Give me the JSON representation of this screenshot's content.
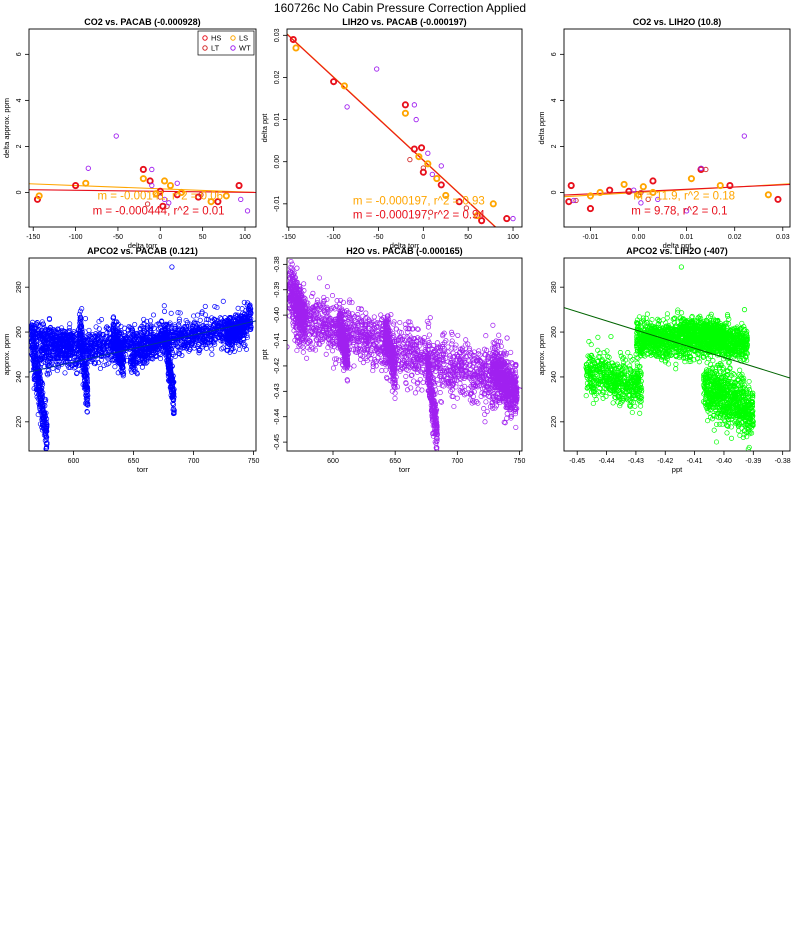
{
  "page": {
    "title": "160726c   No Cabin Pressure Correction Applied"
  },
  "colors": {
    "HS": "#e8101c",
    "LS": "#ffa500",
    "LT": "#d22a2a",
    "WT": "#a020f0",
    "blue": "#0000ff",
    "purple": "#a020f0",
    "green": "#00ff00",
    "fit_dark": "#003399",
    "fit_green": "#006400"
  },
  "chart_data": [
    {
      "type": "scatter",
      "title": "CO2 vs. PACAB (-0.000928)",
      "xlabel": "delta torr",
      "ylabel": "delta approx. ppm",
      "xlim": [
        -155,
        113
      ],
      "ylim": [
        -1.5,
        7.1
      ],
      "xticks": [
        -150,
        -100,
        -50,
        0,
        50,
        100
      ],
      "xtick_labels": [
        "-150",
        "-100",
        "-50",
        "0",
        "50",
        "100"
      ],
      "yticks": [
        0,
        2,
        4,
        6
      ],
      "ytick_labels": [
        "0",
        "2",
        "4",
        "6"
      ],
      "legend": {
        "position": "top-right",
        "entries": [
          "HS",
          "LS",
          "LT",
          "WT"
        ]
      },
      "series": [
        {
          "name": "HS",
          "color": "HS",
          "bold": true,
          "points": [
            [
              -145,
              -0.3
            ],
            [
              -100,
              0.3
            ],
            [
              -20,
              1.0
            ],
            [
              -12,
              0.5
            ],
            [
              0,
              0.05
            ],
            [
              20,
              -0.1
            ],
            [
              45,
              -0.2
            ],
            [
              68,
              -0.4
            ],
            [
              93,
              0.3
            ],
            [
              3,
              -0.6
            ]
          ]
        },
        {
          "name": "LS",
          "color": "LS",
          "bold": true,
          "points": [
            [
              -143,
              -0.15
            ],
            [
              -88,
              0.4
            ],
            [
              -20,
              0.6
            ],
            [
              -5,
              -0.05
            ],
            [
              5,
              0.5
            ],
            [
              12,
              0.3
            ],
            [
              25,
              0.0
            ],
            [
              60,
              -0.4
            ],
            [
              78,
              -0.15
            ]
          ]
        },
        {
          "name": "LT",
          "color": "LT",
          "bold": false,
          "points": [
            [
              -15,
              -0.5
            ],
            [
              0,
              -0.2
            ],
            [
              8,
              -0.6
            ],
            [
              48,
              -0.1
            ]
          ]
        },
        {
          "name": "WT",
          "color": "WT",
          "bold": false,
          "points": [
            [
              -52,
              2.45
            ],
            [
              -85,
              1.05
            ],
            [
              -10,
              1.0
            ],
            [
              -10,
              0.3
            ],
            [
              5,
              -0.3
            ],
            [
              10,
              -0.45
            ],
            [
              20,
              0.4
            ],
            [
              95,
              -0.3
            ],
            [
              103,
              -0.8
            ]
          ]
        }
      ],
      "fits": [
        {
          "color": "LS",
          "slope": -0.00141,
          "intercept": 0.16
        },
        {
          "color": "HS",
          "slope": -0.000444,
          "intercept": 0.05
        }
      ],
      "annotations": [
        {
          "text": "m = -0.00141, r^2 = 0.06",
          "color": "LS",
          "at": [
            0,
            -0.3
          ]
        },
        {
          "text": "m = -0.000444, r^2 = 0.01",
          "color": "HS",
          "at": [
            -2,
            -0.95
          ]
        }
      ]
    },
    {
      "type": "scatter",
      "title": "LIH2O vs. PACAB (-0.000197)",
      "xlabel": "delta torr",
      "ylabel": "delta ppt",
      "xlim": [
        -152,
        110
      ],
      "ylim": [
        -0.0155,
        0.0315
      ],
      "xticks": [
        -150,
        -100,
        -50,
        0,
        50,
        100
      ],
      "xtick_labels": [
        "-150",
        "-100",
        "-50",
        "0",
        "50",
        "100"
      ],
      "yticks": [
        -0.01,
        0.0,
        0.01,
        0.02,
        0.03
      ],
      "ytick_labels": [
        "-0.01",
        "0.00",
        "0.01",
        "0.02",
        "0.03"
      ],
      "series": [
        {
          "name": "HS",
          "color": "HS",
          "bold": true,
          "points": [
            [
              -145,
              0.029
            ],
            [
              -100,
              0.019
            ],
            [
              -20,
              0.0135
            ],
            [
              -10,
              0.003
            ],
            [
              -2,
              0.0033
            ],
            [
              0,
              -0.0025
            ],
            [
              20,
              -0.0055
            ],
            [
              40,
              -0.0095
            ],
            [
              65,
              -0.014
            ],
            [
              93,
              -0.0135
            ]
          ]
        },
        {
          "name": "LS",
          "color": "LS",
          "bold": true,
          "points": [
            [
              -142,
              0.027
            ],
            [
              -88,
              0.018
            ],
            [
              -20,
              0.0115
            ],
            [
              -5,
              0.0012
            ],
            [
              5,
              -0.0005
            ],
            [
              15,
              -0.004
            ],
            [
              25,
              -0.008
            ],
            [
              60,
              -0.0128
            ],
            [
              78,
              -0.01
            ]
          ]
        },
        {
          "name": "LT",
          "color": "LT",
          "bold": false,
          "points": [
            [
              -15,
              0.0005
            ],
            [
              0,
              -0.0015
            ],
            [
              8,
              -0.012
            ],
            [
              48,
              -0.011
            ]
          ]
        },
        {
          "name": "WT",
          "color": "WT",
          "bold": false,
          "points": [
            [
              -52,
              0.022
            ],
            [
              -85,
              0.013
            ],
            [
              -8,
              0.01
            ],
            [
              -10,
              0.0135
            ],
            [
              5,
              0.002
            ],
            [
              10,
              -0.003
            ],
            [
              20,
              -0.001
            ],
            [
              100,
              -0.0135
            ]
          ]
        }
      ],
      "fits": [
        {
          "color": "LS",
          "slope": -0.000197,
          "intercept": 0.00042
        },
        {
          "color": "HS",
          "slope": -0.000197,
          "intercept": 0.0003
        }
      ],
      "annotations": [
        {
          "text": "m = -0.000197, r^2 = 0.93",
          "color": "LS",
          "at": [
            -5,
            -0.0102
          ]
        },
        {
          "text": "m = -0.000197, r^2 = 0.94",
          "color": "HS",
          "at": [
            -5,
            -0.0135
          ]
        }
      ]
    },
    {
      "type": "scatter",
      "title": "CO2 vs. LIH2O (10.8)",
      "xlabel": "delta ppt",
      "ylabel": "delta ppm",
      "xlim": [
        -0.0155,
        0.0315
      ],
      "ylim": [
        -1.5,
        7.1
      ],
      "xticks": [
        -0.01,
        0.0,
        0.01,
        0.02,
        0.03
      ],
      "xtick_labels": [
        "-0.01",
        "0.00",
        "0.01",
        "0.02",
        "0.03"
      ],
      "yticks": [
        0,
        2,
        4,
        6
      ],
      "ytick_labels": [
        "0",
        "2",
        "4",
        "6"
      ],
      "series": [
        {
          "name": "HS",
          "color": "HS",
          "bold": true,
          "points": [
            [
              -0.014,
              0.3
            ],
            [
              -0.01,
              -0.7
            ],
            [
              -0.006,
              0.1
            ],
            [
              -0.002,
              0.05
            ],
            [
              0.003,
              0.5
            ],
            [
              0.013,
              1.0
            ],
            [
              0.019,
              0.3
            ],
            [
              0.029,
              -0.3
            ],
            [
              -0.0145,
              -0.4
            ]
          ]
        },
        {
          "name": "LS",
          "color": "LS",
          "bold": true,
          "points": [
            [
              -0.01,
              -0.15
            ],
            [
              -0.008,
              0.0
            ],
            [
              -0.003,
              0.35
            ],
            [
              0.001,
              0.25
            ],
            [
              0.003,
              0.0
            ],
            [
              0.011,
              0.6
            ],
            [
              0.017,
              0.3
            ],
            [
              0.027,
              -0.1
            ],
            [
              0.0,
              -0.1
            ]
          ]
        },
        {
          "name": "LT",
          "color": "LT",
          "bold": false,
          "points": [
            [
              -0.013,
              -0.35
            ],
            [
              0.0005,
              0.0
            ],
            [
              0.002,
              -0.3
            ],
            [
              0.014,
              1.0
            ]
          ]
        },
        {
          "name": "WT",
          "color": "WT",
          "bold": false,
          "points": [
            [
              0.022,
              2.45
            ],
            [
              0.013,
              1.05
            ],
            [
              -0.0135,
              -0.35
            ],
            [
              0.004,
              -0.3
            ],
            [
              0.01,
              -0.8
            ],
            [
              -0.001,
              0.1
            ],
            [
              0.0005,
              -0.45
            ]
          ]
        }
      ],
      "fits": [
        {
          "color": "LS",
          "slope": 11.9,
          "intercept": 0.0
        },
        {
          "color": "HS",
          "slope": 9.78,
          "intercept": 0.04
        }
      ],
      "annotations": [
        {
          "text": "m = 11.9, r^2 = 0.18",
          "color": "LS",
          "at": [
            0.0095,
            -0.3
          ]
        },
        {
          "text": "m = 9.78, r^2 = 0.1",
          "color": "HS",
          "at": [
            0.0085,
            -0.95
          ]
        }
      ]
    },
    {
      "type": "scatter",
      "title": "APCO2 vs. PACAB (0.121)",
      "xlabel": "torr",
      "ylabel": "approx. ppm",
      "xlim": [
        563,
        752
      ],
      "ylim": [
        207,
        293
      ],
      "xticks": [
        600,
        650,
        700,
        750
      ],
      "xtick_labels": [
        "600",
        "650",
        "700",
        "750"
      ],
      "yticks": [
        220,
        240,
        260,
        280
      ],
      "ytick_labels": [
        "220",
        "240",
        "260",
        "280"
      ],
      "point_color": "blue",
      "fit": {
        "color": "fit_dark",
        "slope": 0.121,
        "intercept": 174
      },
      "cloud": {
        "count": 3200,
        "seed": 11,
        "components": [
          {
            "w": 0.48,
            "x": [
              572,
              745
            ],
            "y_mean": [
              250,
              262
            ],
            "y_sd": 3.8
          },
          {
            "w": 0.1,
            "x": [
              565,
              578
            ],
            "y_mean": [
              258,
              214
            ],
            "y_sd": 5
          },
          {
            "w": 0.07,
            "x": [
              605,
              612
            ],
            "y_mean": [
              262,
              232
            ],
            "y_sd": 5
          },
          {
            "w": 0.07,
            "x": [
              633,
              642
            ],
            "y_mean": [
              260,
              245
            ],
            "y_sd": 4
          },
          {
            "w": 0.06,
            "x": [
              676,
              684
            ],
            "y_mean": [
              260,
              230
            ],
            "y_sd": 4
          },
          {
            "w": 0.06,
            "x": [
              648,
              672
            ],
            "y_mean": [
              246,
              256
            ],
            "y_sd": 3
          },
          {
            "w": 0.08,
            "x": [
              728,
              748
            ],
            "y_mean": [
              258,
              266
            ],
            "y_sd": 3
          },
          {
            "w": 0.08,
            "x": [
              565,
              600
            ],
            "y_mean": [
              260,
              256
            ],
            "y_sd": 2.5
          }
        ]
      },
      "extra_points": [
        [
          682,
          289
        ],
        [
          745,
          273
        ],
        [
          610,
          266
        ],
        [
          580,
          266
        ]
      ]
    },
    {
      "type": "scatter",
      "title": "H2O vs. PACAB (-0.000165)",
      "xlabel": "torr",
      "ylabel": "ppt",
      "xlim": [
        563,
        752
      ],
      "ylim": [
        -0.4535,
        -0.3775
      ],
      "xticks": [
        600,
        650,
        700,
        750
      ],
      "xtick_labels": [
        "600",
        "650",
        "700",
        "750"
      ],
      "yticks": [
        -0.45,
        -0.44,
        -0.43,
        -0.42,
        -0.41,
        -0.4,
        -0.39,
        -0.38
      ],
      "ytick_labels": [
        "-0.45",
        "-0.44",
        "-0.43",
        "-0.42",
        "-0.41",
        "-0.40",
        "-0.39",
        "-0.38"
      ],
      "point_color": "purple",
      "fit": {
        "color": "purple",
        "slope": -0.000165,
        "intercept": -0.3048
      },
      "cloud": {
        "count": 3200,
        "seed": 23,
        "components": [
          {
            "w": 0.5,
            "x": [
              568,
              745
            ],
            "y_mean": [
              -0.4,
              -0.428
            ],
            "y_sd": 0.0055
          },
          {
            "w": 0.12,
            "x": [
              565,
              578
            ],
            "y_mean": [
              -0.389,
              -0.404
            ],
            "y_sd": 0.0045
          },
          {
            "w": 0.08,
            "x": [
              605,
              612
            ],
            "y_mean": [
              -0.404,
              -0.418
            ],
            "y_sd": 0.004
          },
          {
            "w": 0.08,
            "x": [
              642,
              650
            ],
            "y_mean": [
              -0.405,
              -0.424
            ],
            "y_sd": 0.004
          },
          {
            "w": 0.08,
            "x": [
              676,
              684
            ],
            "y_mean": [
              -0.42,
              -0.448
            ],
            "y_sd": 0.004
          },
          {
            "w": 0.14,
            "x": [
              728,
              748
            ],
            "y_mean": [
              -0.42,
              -0.432
            ],
            "y_sd": 0.005
          }
        ]
      },
      "extra_points": [
        [
          571,
          -0.3815
        ],
        [
          740,
          -0.409
        ],
        [
          563,
          -0.4125
        ]
      ]
    },
    {
      "type": "scatter",
      "title": "APCO2 vs. LIH2O (-407)",
      "xlabel": "ppt",
      "ylabel": "approx. ppm",
      "xlim": [
        -0.4545,
        -0.3775
      ],
      "ylim": [
        207,
        293
      ],
      "xticks": [
        -0.45,
        -0.44,
        -0.43,
        -0.42,
        -0.41,
        -0.4,
        -0.39,
        -0.38
      ],
      "xtick_labels": [
        "-0.45",
        "-0.44",
        "-0.43",
        "-0.42",
        "-0.41",
        "-0.40",
        "-0.39",
        "-0.38"
      ],
      "yticks": [
        220,
        240,
        260,
        280
      ],
      "ytick_labels": [
        "220",
        "240",
        "260",
        "280"
      ],
      "point_color": "green",
      "fit": {
        "color": "fit_green",
        "slope": -407,
        "intercept": 85.9
      },
      "cloud": {
        "count": 3200,
        "seed": 37,
        "components": [
          {
            "w": 0.5,
            "x": [
              -0.43,
              -0.392
            ],
            "y_mean": [
              257,
              255
            ],
            "y_sd": 4
          },
          {
            "w": 0.16,
            "x": [
              -0.447,
              -0.428
            ],
            "y_mean": [
              242,
              236
            ],
            "y_sd": 5
          },
          {
            "w": 0.24,
            "x": [
              -0.407,
              -0.39
            ],
            "y_mean": [
              236,
              224
            ],
            "y_sd": 6
          },
          {
            "w": 0.1,
            "x": [
              -0.415,
              -0.4
            ],
            "y_mean": [
              262,
              260
            ],
            "y_sd": 2.5
          }
        ]
      },
      "extra_points": [
        [
          -0.4145,
          289
        ],
        [
          -0.393,
          270
        ],
        [
          -0.4385,
          258
        ]
      ]
    }
  ]
}
